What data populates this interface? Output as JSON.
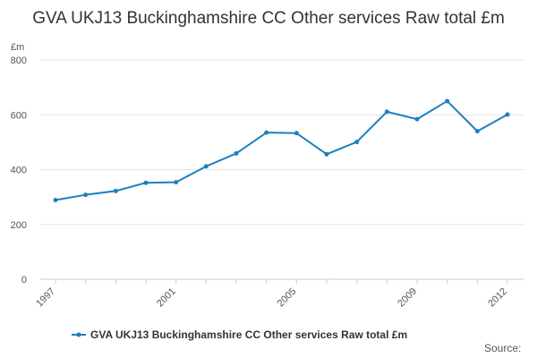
{
  "chart_data": {
    "type": "line",
    "title": "GVA UKJ13 Buckinghamshire CC Other services Raw total £m",
    "ylabel": "£m",
    "xlabel": "",
    "x": [
      1997,
      1998,
      1999,
      2000,
      2001,
      2002,
      2003,
      2004,
      2005,
      2006,
      2007,
      2008,
      2009,
      2010,
      2011,
      2012
    ],
    "x_tick_labels": [
      "1997",
      "2001",
      "2005",
      "2009",
      "2012"
    ],
    "y_ticks": [
      0,
      200,
      400,
      600,
      800
    ],
    "ylim": [
      0,
      800
    ],
    "grid": true,
    "legend_position": "bottom",
    "series": [
      {
        "name": "GVA UKJ13 Buckinghamshire CC Other services Raw total £m",
        "color": "#1f7fbf",
        "values": [
          289,
          308,
          322,
          352,
          354,
          412,
          459,
          535,
          533,
          456,
          501,
          611,
          584,
          650,
          540,
          601
        ]
      }
    ]
  },
  "source_label": "Source:"
}
